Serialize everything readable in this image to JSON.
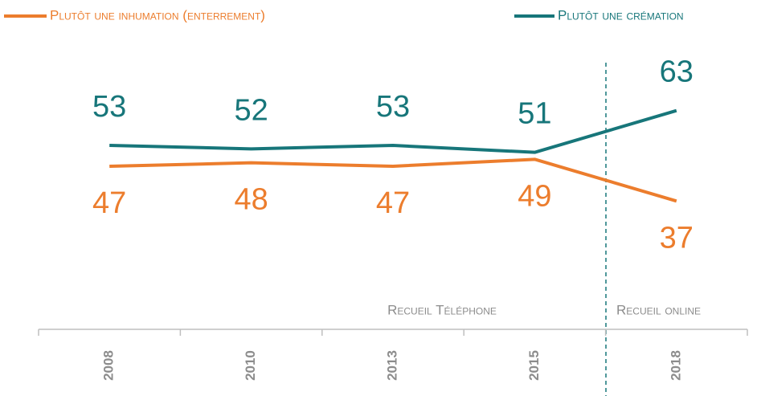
{
  "chart_data": {
    "type": "line",
    "categories": [
      "2008",
      "2010",
      "2013",
      "2015",
      "2018"
    ],
    "series": [
      {
        "name": "Plutôt une inhumation (enterrement)",
        "color": "#ec7d2d",
        "values": [
          47,
          48,
          47,
          49,
          37
        ]
      },
      {
        "name": "Plutôt une crémation",
        "color": "#17767a",
        "values": [
          53,
          52,
          53,
          51,
          63
        ]
      }
    ],
    "annotations": [
      "Recueil Téléphone",
      "Recueil online"
    ]
  }
}
